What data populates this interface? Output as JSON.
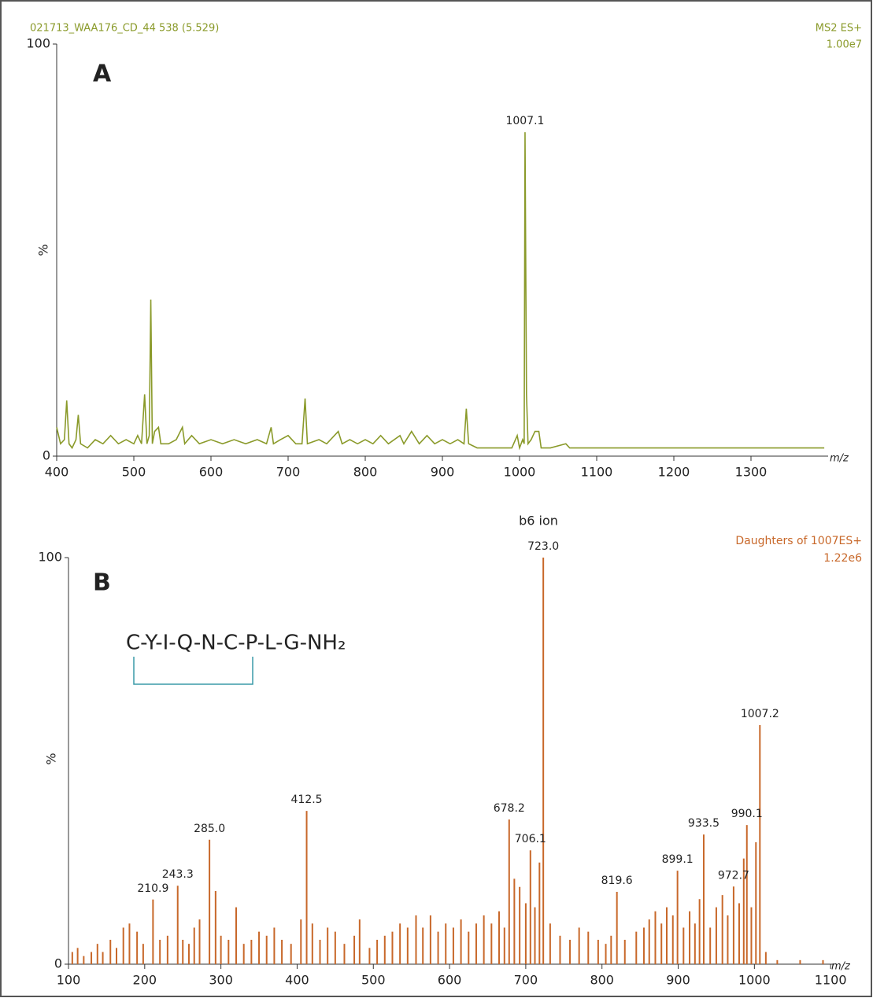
{
  "chart_data": [
    {
      "type": "line",
      "title": "021713_WAA176_CD_44  538 (5.529)",
      "panel_label": "A",
      "scan_function": "MS2 ES+",
      "intensity": "1.00e7",
      "ylabel": "%",
      "xlabel": "m/z",
      "color": "#8a9a2a",
      "x": [
        400,
        405,
        410,
        413,
        416,
        420,
        425,
        428,
        431,
        440,
        450,
        460,
        470,
        480,
        490,
        500,
        505,
        510,
        514,
        517,
        520,
        522,
        524,
        527,
        532,
        535,
        545,
        555,
        563,
        566,
        575,
        585,
        600,
        615,
        630,
        645,
        660,
        672,
        678,
        681,
        690,
        700,
        710,
        718,
        722,
        725,
        740,
        750,
        765,
        770,
        780,
        790,
        800,
        810,
        820,
        830,
        845,
        850,
        860,
        870,
        880,
        890,
        900,
        910,
        920,
        928,
        931,
        934,
        945,
        960,
        975,
        990,
        997,
        1000,
        1004,
        1006,
        1007.1,
        1008,
        1009,
        1011,
        1015,
        1020,
        1025,
        1028,
        1040,
        1060,
        1065,
        1080,
        1100,
        1150,
        1200,
        1250,
        1300,
        1350,
        1395
      ],
      "values": [
        7,
        3,
        4,
        13.5,
        3,
        2,
        4,
        10,
        3,
        2,
        4,
        3,
        5,
        3,
        4,
        3,
        5,
        3,
        15,
        3,
        5,
        38,
        3,
        6,
        7,
        3,
        3,
        4,
        7,
        3,
        5,
        3,
        4,
        3,
        4,
        3,
        4,
        3,
        7,
        3,
        4,
        5,
        3,
        3,
        14,
        3,
        4,
        3,
        6,
        3,
        4,
        3,
        4,
        3,
        5,
        3,
        5,
        3,
        6,
        3,
        5,
        3,
        4,
        3,
        4,
        3,
        11.5,
        3,
        2,
        2,
        2,
        2,
        5,
        2,
        4,
        3,
        78.6,
        48,
        15,
        3,
        4,
        6,
        6,
        2,
        2,
        3,
        2,
        2,
        2,
        2,
        2,
        2,
        2,
        2,
        2
      ],
      "xlim": [
        400,
        1400
      ],
      "ylim": [
        0,
        100
      ],
      "xticks": [
        400,
        500,
        600,
        700,
        800,
        900,
        1000,
        1100,
        1200,
        1300
      ],
      "yticks": [
        0,
        100
      ],
      "peak_labels": [
        1007.1
      ]
    },
    {
      "type": "stem",
      "panel_label": "B",
      "annotation": "b6 ion",
      "sequence": "C-Y-I-Q-N-C-P-L-G-NH₂",
      "scan_function": "Daughters of 1007ES+",
      "intensity": "1.22e6",
      "ylabel": "%",
      "xlabel": "m/z",
      "color": "#c8682a",
      "x": [
        105,
        112,
        120,
        130,
        138,
        145,
        155,
        163,
        172,
        180,
        190,
        198,
        210.9,
        220,
        230,
        243.3,
        250,
        258,
        265,
        272,
        285,
        293,
        300,
        310,
        320,
        330,
        340,
        350,
        360,
        370,
        380,
        392,
        405,
        412.5,
        420,
        430,
        440,
        450,
        462,
        475,
        482,
        495,
        505,
        515,
        525,
        535,
        545,
        556,
        565,
        575,
        585,
        595,
        605,
        615,
        625,
        635,
        645,
        655,
        665,
        672,
        678.2,
        685,
        692,
        700,
        706.1,
        712,
        718,
        723,
        732,
        745,
        758,
        770,
        782,
        795,
        805,
        812,
        819.6,
        830,
        845,
        855,
        862,
        870,
        878,
        885,
        893,
        899.1,
        907,
        915,
        922,
        928,
        933.5,
        942,
        950,
        958,
        965,
        972.7,
        980,
        986,
        990.1,
        996,
        1002,
        1007.2,
        1015,
        1030,
        1060,
        1090
      ],
      "values": [
        3,
        4,
        2,
        3,
        5,
        3,
        6,
        4,
        9,
        10,
        8,
        5,
        15.9,
        6,
        7,
        19.3,
        6,
        5,
        9,
        11,
        30.6,
        18,
        7,
        6,
        14,
        5,
        6,
        8,
        7,
        9,
        6,
        5,
        11,
        37.7,
        10,
        6,
        9,
        8,
        5,
        7,
        11,
        4,
        6,
        7,
        8,
        10,
        9,
        12,
        9,
        12,
        8,
        10,
        9,
        11,
        8,
        10,
        12,
        10,
        13,
        9,
        35.6,
        21,
        19,
        15,
        28,
        14,
        25,
        100,
        10,
        7,
        6,
        9,
        8,
        6,
        5,
        7,
        17.8,
        6,
        8,
        9,
        11,
        13,
        10,
        14,
        12,
        23,
        9,
        13,
        10,
        16,
        31.9,
        9,
        14,
        17,
        12,
        19.1,
        15,
        26,
        34.2,
        14,
        30,
        58.8,
        3,
        1,
        1,
        1
      ],
      "xlim": [
        100,
        1105
      ],
      "ylim": [
        0,
        100
      ],
      "xticks": [
        100,
        200,
        300,
        400,
        500,
        600,
        700,
        800,
        900,
        1000,
        1100
      ],
      "yticks": [
        0,
        100
      ],
      "peak_labels": [
        210.9,
        243.3,
        {
          "value": 285,
          "label": "285.0"
        },
        412.5,
        678.2,
        706.1,
        {
          "value": 723,
          "label": "723.0"
        },
        819.6,
        899.1,
        933.5,
        972.7,
        990.1,
        1007.2
      ]
    }
  ]
}
